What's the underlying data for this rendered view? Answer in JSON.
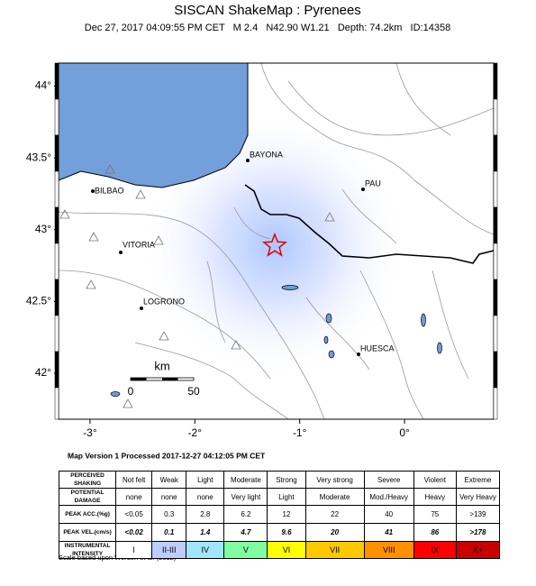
{
  "header": {
    "title": "SISCAN ShakeMap : Pyrenees",
    "subtitle": "Dec 27, 2017 04:09:55 PM CET   M 2.4   N42.90 W1.21   Depth: 74.2km   ID:14358"
  },
  "map": {
    "xlim": [
      -3.3,
      0.85
    ],
    "ylim": [
      41.68,
      44.16
    ],
    "xticks": [
      {
        "value": -3,
        "label": "-3°"
      },
      {
        "value": -2,
        "label": "-2°"
      },
      {
        "value": -1,
        "label": "-1°"
      },
      {
        "value": 0,
        "label": "0°"
      }
    ],
    "yticks": [
      {
        "value": 42,
        "label": "42°"
      },
      {
        "value": 42.5,
        "label": "42.5°"
      },
      {
        "value": 43,
        "label": "43°"
      },
      {
        "value": 43.5,
        "label": "43.5°"
      },
      {
        "value": 44,
        "label": "44°"
      }
    ],
    "cities": [
      "BILBAO",
      "BAYONA",
      "PAU",
      "VITORIA",
      "LOGRONO",
      "HUESCA"
    ],
    "scale_bar": {
      "unit": "km",
      "labels": [
        "0",
        "50"
      ]
    }
  },
  "footer": {
    "processed": "Map Version 1 Processed 2017-12-27 04:12:05 PM CET",
    "credit": "Scale based upon Worden et al. (2012)"
  },
  "legend": {
    "rows": [
      {
        "label": "PERCEIVED SHAKING",
        "cells": [
          "Not felt",
          "Weak",
          "Light",
          "Moderate",
          "Strong",
          "Very strong",
          "Severe",
          "Violent",
          "Extreme"
        ]
      },
      {
        "label": "POTENTIAL DAMAGE",
        "cells": [
          "none",
          "none",
          "none",
          "Very light",
          "Light",
          "Moderate",
          "Mod./Heavy",
          "Heavy",
          "Very Heavy"
        ]
      },
      {
        "label": "PEAK ACC.(%g)",
        "cells": [
          "<0.05",
          "0.3",
          "2.8",
          "6.2",
          "12",
          "22",
          "40",
          "75",
          ">139"
        ]
      },
      {
        "label": "PEAK VEL.(cm/s)",
        "cells": [
          "<0.02",
          "0.1",
          "1.4",
          "4.7",
          "9.6",
          "20",
          "41",
          "86",
          ">178"
        ]
      },
      {
        "label": "INSTRUMENTAL INTENSITY",
        "cells": [
          "I",
          "II-III",
          "IV",
          "V",
          "VI",
          "VII",
          "VIII",
          "IX",
          "X+"
        ]
      }
    ],
    "intensity_colors": [
      "#ffffff",
      "#bfccff",
      "#a0e6ff",
      "#80ffa0",
      "#ffff00",
      "#ffc800",
      "#ff9100",
      "#ff0000",
      "#c80000"
    ]
  }
}
